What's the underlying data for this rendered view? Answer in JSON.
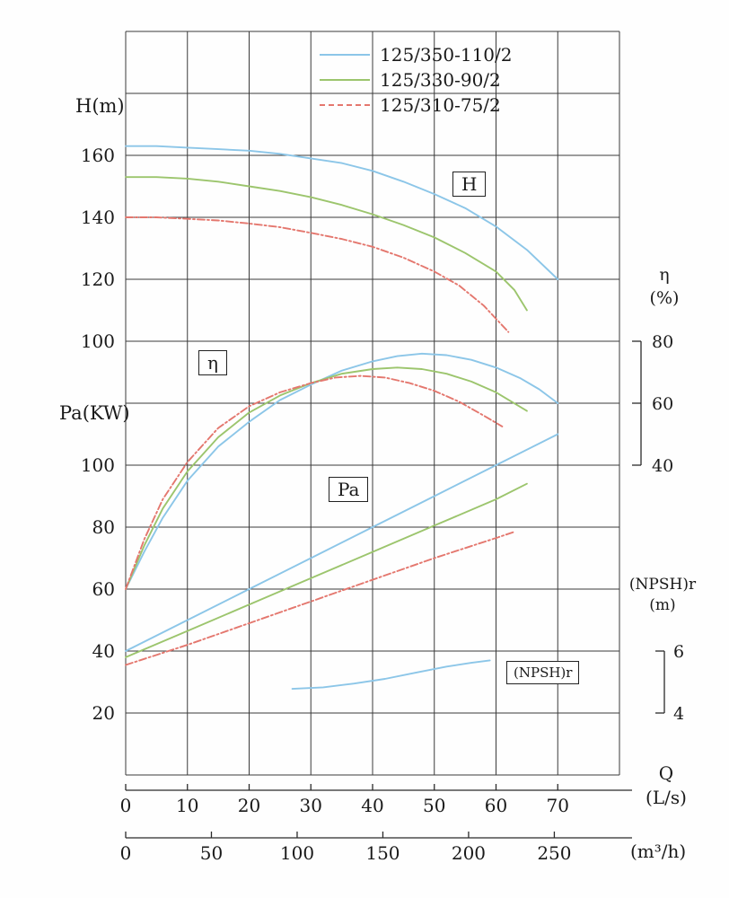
{
  "chart": {
    "legend": [
      {
        "label": "125/350-110/2",
        "color": "#8cc6e8",
        "style": "solid"
      },
      {
        "label": "125/330-90/2",
        "color": "#9cc56d",
        "style": "solid"
      },
      {
        "label": "125/310-75/2",
        "color": "#e4776e",
        "style": "dashed"
      }
    ],
    "axis_labels": {
      "h": "H(m)",
      "pa": "Pa(KW)",
      "eta_line1": "η",
      "eta_line2": "(%)",
      "npsh_line1": "(NPSH)r",
      "npsh_line2": "(m)",
      "q_line1": "Q",
      "q_line2": "(L/s)",
      "m3h": "(m³/h)"
    },
    "curve_labels": {
      "h": "H",
      "eta": "η",
      "pa": "Pa",
      "npsh": "(NPSH)r"
    },
    "colors": {
      "grid": "#3a3a3a"
    }
  },
  "chart_data": {
    "type": "line",
    "x_axis": {
      "label": "Q",
      "units_primary": "L/s",
      "units_secondary": "m³/h",
      "range_ls": [
        0,
        80
      ],
      "ticks_ls": [
        0,
        10,
        20,
        30,
        40,
        50,
        60,
        70
      ],
      "ticks_m3h": [
        0,
        50,
        100,
        150,
        200,
        250
      ]
    },
    "y_axes": [
      {
        "id": "H",
        "label": "H(m)",
        "side": "left",
        "ticks": [
          160,
          140,
          120,
          100
        ]
      },
      {
        "id": "Pa",
        "label": "Pa(KW)",
        "side": "left",
        "ticks": [
          100,
          80,
          60,
          40,
          20
        ]
      },
      {
        "id": "eta",
        "label": "η (%)",
        "side": "right",
        "ticks": [
          80,
          60,
          40
        ]
      },
      {
        "id": "npsh",
        "label": "(NPSH)r (m)",
        "side": "right",
        "ticks": [
          6,
          4
        ]
      }
    ],
    "grid": true,
    "legend_position": "top",
    "series": [
      {
        "name": "125/350-110/2",
        "curve": "H",
        "axis": "H",
        "color": "#8cc6e8",
        "dash": "",
        "points": [
          [
            0,
            163
          ],
          [
            5,
            163
          ],
          [
            10,
            162.5
          ],
          [
            15,
            162
          ],
          [
            20,
            161.5
          ],
          [
            25,
            160.5
          ],
          [
            30,
            159
          ],
          [
            35,
            157.5
          ],
          [
            40,
            155
          ],
          [
            45,
            151.5
          ],
          [
            50,
            147.5
          ],
          [
            55,
            143
          ],
          [
            60,
            137
          ],
          [
            65,
            129.5
          ],
          [
            70,
            120
          ]
        ]
      },
      {
        "name": "125/330-90/2",
        "curve": "H",
        "axis": "H",
        "color": "#9cc56d",
        "dash": "",
        "points": [
          [
            0,
            153
          ],
          [
            5,
            153
          ],
          [
            10,
            152.5
          ],
          [
            15,
            151.5
          ],
          [
            20,
            150
          ],
          [
            25,
            148.5
          ],
          [
            30,
            146.5
          ],
          [
            35,
            144
          ],
          [
            40,
            141
          ],
          [
            45,
            137.5
          ],
          [
            50,
            133.5
          ],
          [
            55,
            128.5
          ],
          [
            60,
            122.5
          ],
          [
            63,
            116.5
          ],
          [
            65,
            110
          ]
        ]
      },
      {
        "name": "125/310-75/2",
        "curve": "H",
        "axis": "H",
        "color": "#e4776e",
        "dash": "8 3 2 3",
        "points": [
          [
            0,
            140
          ],
          [
            5,
            140
          ],
          [
            10,
            139.5
          ],
          [
            15,
            139
          ],
          [
            20,
            138
          ],
          [
            25,
            136.8
          ],
          [
            30,
            135
          ],
          [
            35,
            133
          ],
          [
            40,
            130.5
          ],
          [
            45,
            127
          ],
          [
            50,
            122.5
          ],
          [
            54,
            118
          ],
          [
            58,
            111.5
          ],
          [
            62,
            103
          ]
        ]
      },
      {
        "name": "125/350-110/2",
        "curve": "eta",
        "axis": "eta",
        "color": "#8cc6e8",
        "dash": "",
        "points": [
          [
            0,
            0
          ],
          [
            3,
            12
          ],
          [
            6,
            23
          ],
          [
            10,
            35
          ],
          [
            15,
            46
          ],
          [
            20,
            54
          ],
          [
            25,
            61
          ],
          [
            30,
            66
          ],
          [
            35,
            70.5
          ],
          [
            40,
            73.5
          ],
          [
            44,
            75.2
          ],
          [
            48,
            76
          ],
          [
            52,
            75.5
          ],
          [
            56,
            74
          ],
          [
            60,
            71.5
          ],
          [
            64,
            68
          ],
          [
            67,
            64.5
          ],
          [
            70,
            60
          ]
        ]
      },
      {
        "name": "125/330-90/2",
        "curve": "eta",
        "axis": "eta",
        "color": "#9cc56d",
        "dash": "",
        "points": [
          [
            0,
            0
          ],
          [
            3,
            14
          ],
          [
            6,
            26
          ],
          [
            10,
            38
          ],
          [
            15,
            49
          ],
          [
            20,
            57
          ],
          [
            25,
            62.5
          ],
          [
            30,
            66.5
          ],
          [
            35,
            69.5
          ],
          [
            40,
            71
          ],
          [
            44,
            71.5
          ],
          [
            48,
            71
          ],
          [
            52,
            69.5
          ],
          [
            56,
            67
          ],
          [
            60,
            63.5
          ],
          [
            65,
            57.5
          ]
        ]
      },
      {
        "name": "125/310-75/2",
        "curve": "eta",
        "axis": "eta",
        "color": "#e4776e",
        "dash": "8 3 2 3",
        "points": [
          [
            0,
            0
          ],
          [
            3,
            16
          ],
          [
            6,
            29
          ],
          [
            10,
            41
          ],
          [
            15,
            52
          ],
          [
            20,
            59
          ],
          [
            25,
            63.5
          ],
          [
            30,
            66.5
          ],
          [
            34,
            68.3
          ],
          [
            38,
            68.8
          ],
          [
            42,
            68.3
          ],
          [
            46,
            66.5
          ],
          [
            50,
            64
          ],
          [
            54,
            60.5
          ],
          [
            58,
            56
          ],
          [
            61,
            52.5
          ]
        ]
      },
      {
        "name": "125/350-110/2",
        "curve": "Pa",
        "axis": "Pa",
        "color": "#8cc6e8",
        "dash": "",
        "points": [
          [
            0,
            40
          ],
          [
            10,
            50
          ],
          [
            20,
            60
          ],
          [
            30,
            70
          ],
          [
            40,
            80
          ],
          [
            50,
            90
          ],
          [
            60,
            100
          ],
          [
            70,
            110
          ]
        ]
      },
      {
        "name": "125/330-90/2",
        "curve": "Pa",
        "axis": "Pa",
        "color": "#9cc56d",
        "dash": "",
        "points": [
          [
            0,
            38
          ],
          [
            10,
            46.5
          ],
          [
            20,
            55
          ],
          [
            30,
            63.5
          ],
          [
            40,
            72
          ],
          [
            50,
            80.5
          ],
          [
            60,
            89
          ],
          [
            65,
            94
          ]
        ]
      },
      {
        "name": "125/310-75/2",
        "curve": "Pa",
        "axis": "Pa",
        "color": "#e4776e",
        "dash": "8 3 2 3",
        "points": [
          [
            0,
            35.5
          ],
          [
            10,
            42
          ],
          [
            20,
            49
          ],
          [
            30,
            56
          ],
          [
            40,
            63
          ],
          [
            50,
            70
          ],
          [
            60,
            76.5
          ],
          [
            63,
            78.5
          ]
        ]
      },
      {
        "name": "125/350-110/2",
        "curve": "npsh",
        "axis": "npsh",
        "color": "#8cc6e8",
        "dash": "",
        "points": [
          [
            27,
            4.78
          ],
          [
            32,
            4.83
          ],
          [
            37,
            4.95
          ],
          [
            42,
            5.1
          ],
          [
            47,
            5.3
          ],
          [
            52,
            5.5
          ],
          [
            56,
            5.62
          ],
          [
            59,
            5.7
          ]
        ]
      }
    ]
  }
}
